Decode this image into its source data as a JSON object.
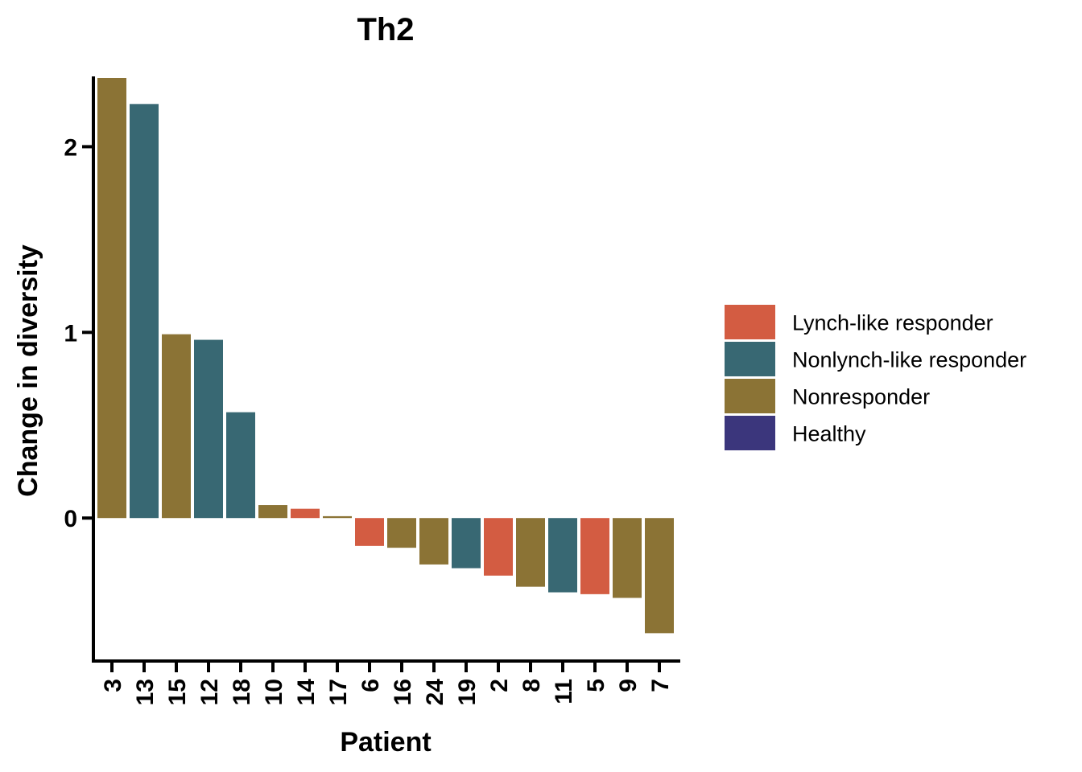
{
  "chart_data": {
    "type": "bar",
    "title": "Th2",
    "xlabel": "Patient",
    "ylabel": "Change in diversity",
    "ylim": [
      -0.77,
      2.37
    ],
    "yticks": [
      0,
      1,
      2
    ],
    "grid": false,
    "legend_position": "right",
    "categories": [
      "3",
      "13",
      "15",
      "12",
      "18",
      "10",
      "14",
      "17",
      "6",
      "16",
      "24",
      "19",
      "2",
      "8",
      "11",
      "5",
      "9",
      "7"
    ],
    "values": [
      2.37,
      2.23,
      0.99,
      0.96,
      0.57,
      0.07,
      0.05,
      0.01,
      -0.15,
      -0.16,
      -0.25,
      -0.27,
      -0.31,
      -0.37,
      -0.4,
      -0.41,
      -0.43,
      -0.62
    ],
    "groups": [
      "Nonresponder",
      "Nonlynch-like responder",
      "Nonresponder",
      "Nonlynch-like responder",
      "Nonlynch-like responder",
      "Nonresponder",
      "Lynch-like responder",
      "Nonresponder",
      "Lynch-like responder",
      "Nonresponder",
      "Nonresponder",
      "Nonlynch-like responder",
      "Lynch-like responder",
      "Nonresponder",
      "Nonlynch-like responder",
      "Lynch-like responder",
      "Nonresponder",
      "Nonresponder"
    ],
    "legend": [
      {
        "name": "Lynch-like responder",
        "color": "#D35C42"
      },
      {
        "name": "Nonlynch-like responder",
        "color": "#386873"
      },
      {
        "name": "Nonresponder",
        "color": "#8B7335"
      },
      {
        "name": "Healthy",
        "color": "#3B367C"
      }
    ]
  }
}
